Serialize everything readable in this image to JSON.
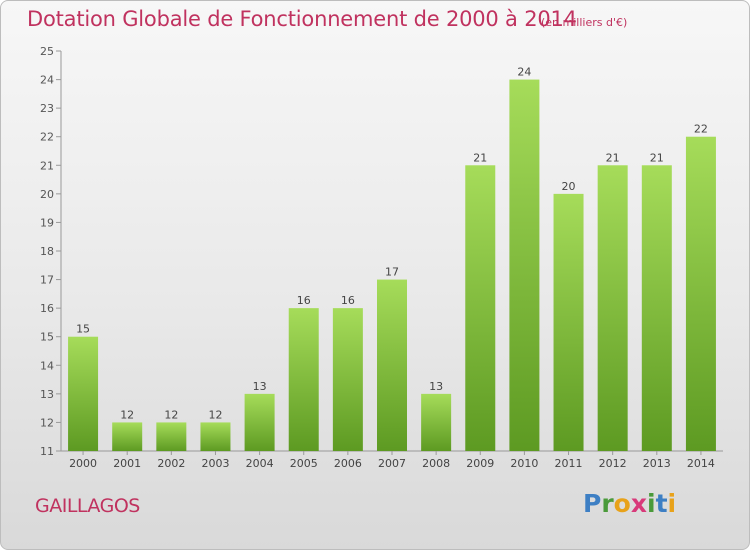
{
  "title": "Dotation Globale de Fonctionnement de 2000 à 2014",
  "subtitle": "(en milliers d'€)",
  "commune": "GAILLAGOS",
  "logo": {
    "letters": [
      "P",
      "r",
      "o",
      "x",
      "i",
      "t",
      "i"
    ],
    "colors": [
      "#3d7fc4",
      "#4a9a3a",
      "#e8a21a",
      "#d83a7a",
      "#4a9a3a",
      "#3d7fc4",
      "#e8a21a"
    ]
  },
  "colors": {
    "bar": "#7cc23a",
    "bar_light": "#a6dc5a",
    "bar_dark": "#5d9a22",
    "text": "#c0325f",
    "axis": "#999999"
  },
  "chart_data": {
    "type": "bar",
    "categories": [
      "2000",
      "2001",
      "2002",
      "2003",
      "2004",
      "2005",
      "2006",
      "2007",
      "2008",
      "2009",
      "2010",
      "2011",
      "2012",
      "2013",
      "2014"
    ],
    "values": [
      15,
      12,
      12,
      12,
      13,
      16,
      16,
      17,
      13,
      21,
      24,
      20,
      21,
      21,
      22
    ],
    "ylim": [
      11,
      25
    ],
    "yticks": [
      11,
      12,
      13,
      14,
      15,
      16,
      17,
      18,
      19,
      20,
      21,
      22,
      23,
      24,
      25
    ],
    "xlabel": "",
    "ylabel": "",
    "grid": false
  }
}
